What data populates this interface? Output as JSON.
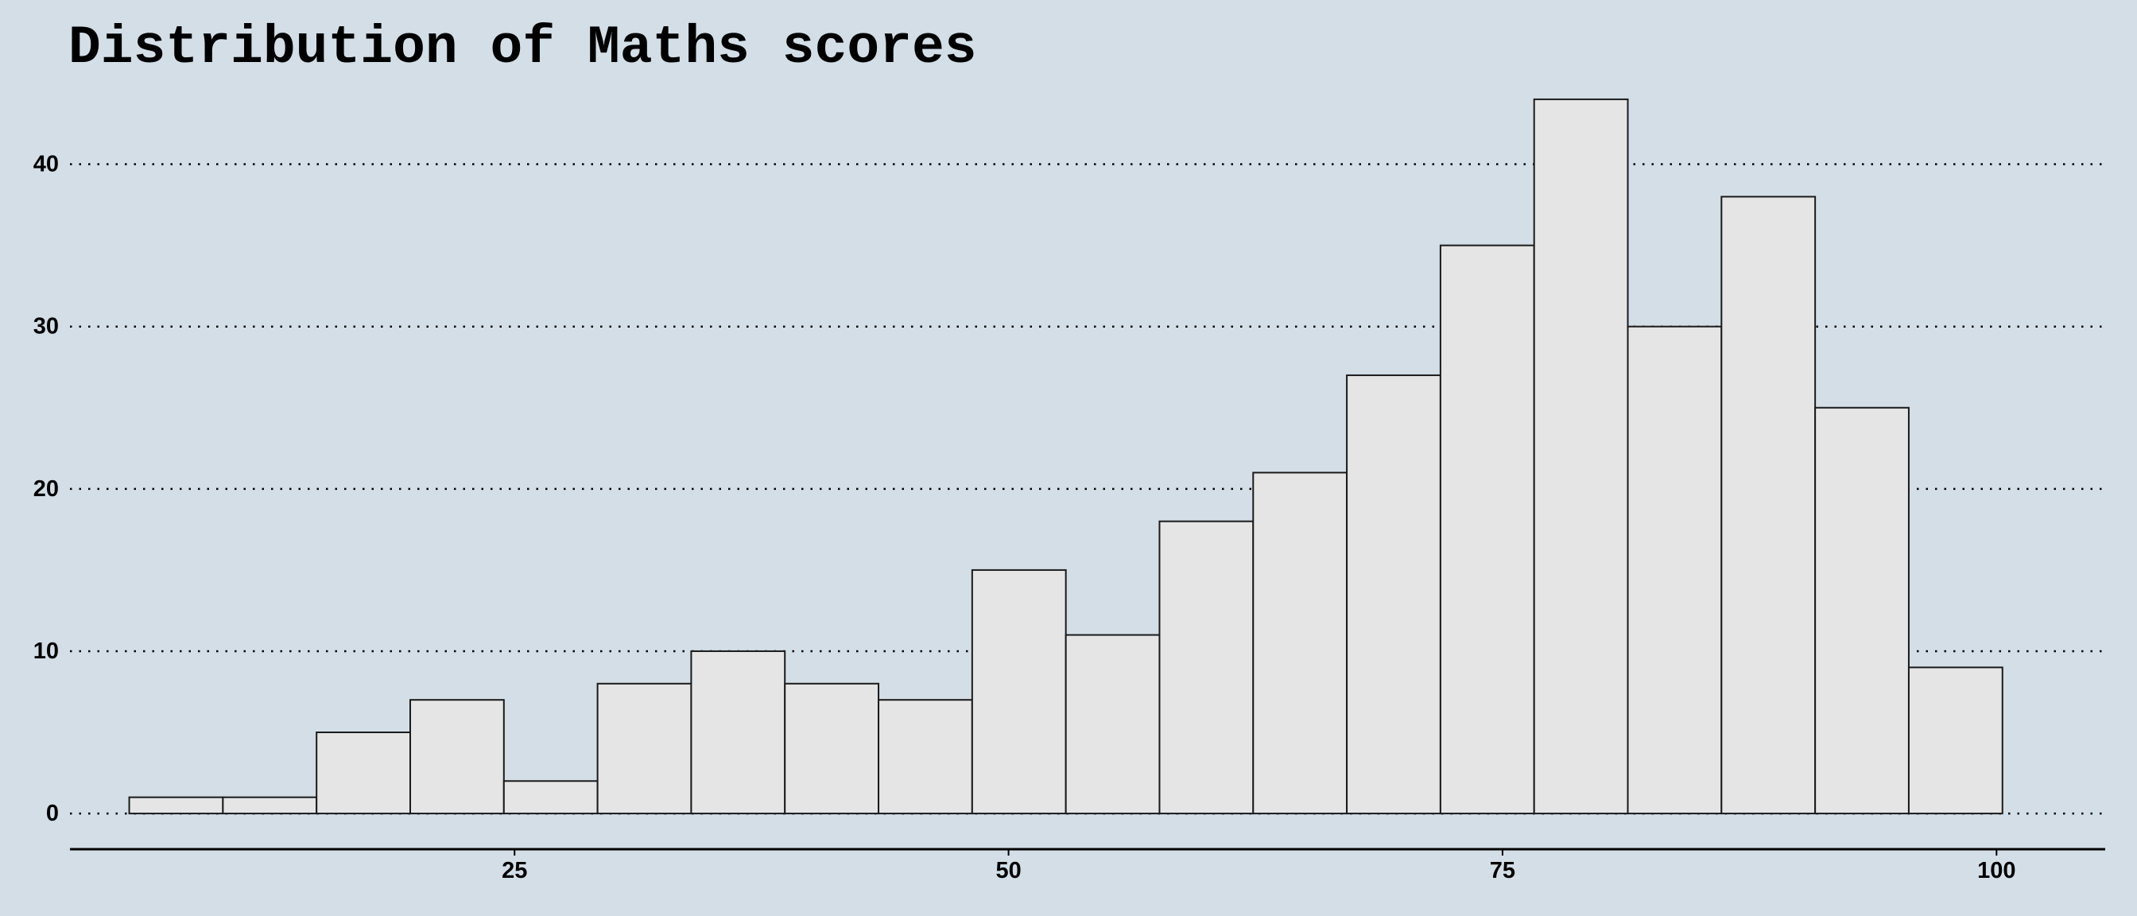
{
  "chart_data": {
    "type": "bar",
    "subtype": "histogram",
    "title": "Distribution of Maths scores",
    "xlabel": "",
    "ylabel": "",
    "bin_width": 4.74,
    "bin_start": 5.5,
    "bins": [
      {
        "x0": 5.5,
        "x1": 10.24,
        "count": 1
      },
      {
        "x0": 10.24,
        "x1": 14.98,
        "count": 1
      },
      {
        "x0": 14.98,
        "x1": 19.72,
        "count": 5
      },
      {
        "x0": 19.72,
        "x1": 24.46,
        "count": 7
      },
      {
        "x0": 24.46,
        "x1": 29.2,
        "count": 2
      },
      {
        "x0": 29.2,
        "x1": 33.94,
        "count": 8
      },
      {
        "x0": 33.94,
        "x1": 38.68,
        "count": 10
      },
      {
        "x0": 38.68,
        "x1": 43.42,
        "count": 8
      },
      {
        "x0": 43.42,
        "x1": 48.16,
        "count": 7
      },
      {
        "x0": 48.16,
        "x1": 52.9,
        "count": 15
      },
      {
        "x0": 52.9,
        "x1": 57.64,
        "count": 11
      },
      {
        "x0": 57.64,
        "x1": 62.38,
        "count": 18
      },
      {
        "x0": 62.38,
        "x1": 67.12,
        "count": 21
      },
      {
        "x0": 67.12,
        "x1": 71.86,
        "count": 27
      },
      {
        "x0": 71.86,
        "x1": 76.6,
        "count": 35
      },
      {
        "x0": 76.6,
        "x1": 81.34,
        "count": 44
      },
      {
        "x0": 81.34,
        "x1": 86.08,
        "count": 30
      },
      {
        "x0": 86.08,
        "x1": 90.82,
        "count": 38
      },
      {
        "x0": 90.82,
        "x1": 95.56,
        "count": 25
      },
      {
        "x0": 95.56,
        "x1": 100.3,
        "count": 9
      }
    ],
    "xlim": [
      2.5,
      105.5
    ],
    "ylim": [
      -2.2,
      46.2
    ],
    "x_ticks": [
      25,
      50,
      75,
      100
    ],
    "x_tick_labels": [
      "25",
      "50",
      "75",
      "100"
    ],
    "y_ticks": [
      0,
      10,
      20,
      30,
      40
    ],
    "y_tick_labels": [
      "0",
      "10",
      "20",
      "30",
      "40"
    ],
    "grid": "horizontal-dotted",
    "legend": "none",
    "colors": {
      "background": "#d3dee7",
      "bar_fill": "#e5e5e5",
      "bar_stroke": "#1a1a1a",
      "text": "#000000"
    }
  }
}
